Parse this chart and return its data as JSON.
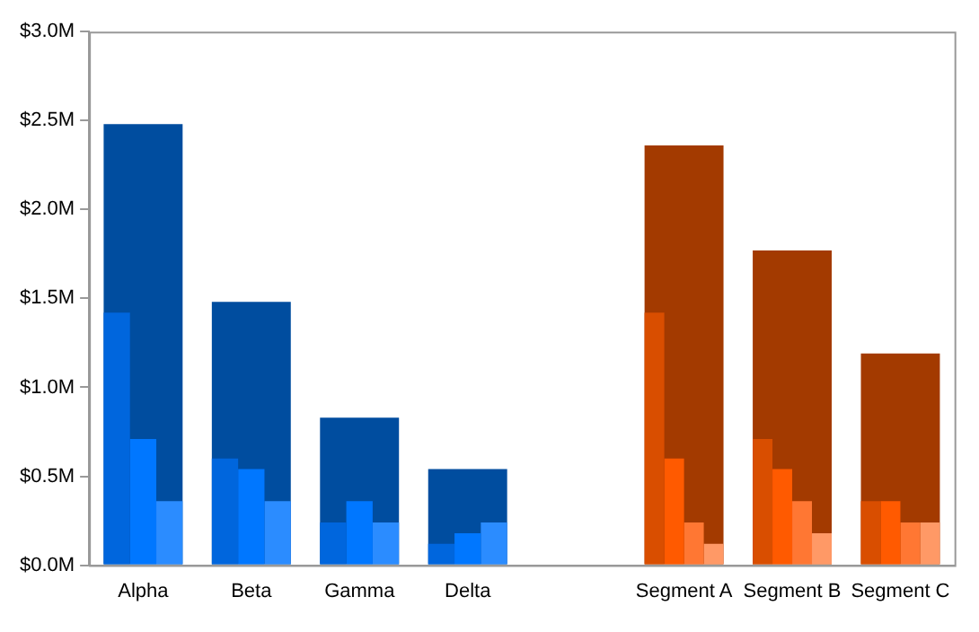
{
  "chart_data": {
    "type": "bar",
    "categories": [
      "Alpha",
      "Beta",
      "Gamma",
      "Delta",
      null,
      "Segment A",
      "Segment B",
      "Segment C"
    ],
    "series": [
      {
        "colors": [
          "#004d9f",
          "#004d9f",
          "#004d9f",
          "#004d9f",
          null,
          "#a33a00",
          "#a33a00",
          "#a33a00"
        ],
        "values": [
          2.48,
          1.48,
          0.83,
          0.54,
          null,
          2.36,
          1.77,
          1.19
        ]
      },
      {
        "colors": [
          "#0066dd",
          "#0066dd",
          "#0066dd",
          "#0066dd",
          null,
          "#d94e00",
          "#d94e00",
          "#d94e00"
        ],
        "values": [
          1.42,
          0.6,
          0.24,
          0.12,
          null,
          1.42,
          0.71,
          0.36
        ]
      },
      {
        "colors": [
          "#0077ff",
          "#0077ff",
          "#0077ff",
          "#0077ff",
          null,
          "#ff5a00",
          "#ff5a00",
          "#ff5a00"
        ],
        "values": [
          0.71,
          0.54,
          0.36,
          0.18,
          null,
          0.6,
          0.54,
          0.36
        ]
      },
      {
        "colors": [
          "#2b8cff",
          "#2b8cff",
          "#2b8cff",
          "#2b8cff",
          null,
          "#ff7733",
          "#ff7733",
          "#ff7733"
        ],
        "values": [
          0.36,
          0.36,
          0.24,
          0.24,
          null,
          0.24,
          0.36,
          0.24
        ]
      },
      {
        "colors": [
          null,
          null,
          null,
          null,
          null,
          "#ff9966",
          "#ff9966",
          "#ff9966"
        ],
        "values": [
          null,
          null,
          null,
          null,
          null,
          0.12,
          0.18,
          0.24
        ]
      }
    ],
    "ylim": [
      0,
      3
    ],
    "yticks": [
      {
        "value": 0,
        "label": "$0.0M"
      },
      {
        "value": 0.5,
        "label": "$0.5M"
      },
      {
        "value": 1,
        "label": "$1.0M"
      },
      {
        "value": 1.5,
        "label": "$1.5M"
      },
      {
        "value": 2,
        "label": "$2.0M"
      },
      {
        "value": 2.5,
        "label": "$2.5M"
      },
      {
        "value": 3,
        "label": "$3.0M"
      }
    ],
    "grid": false,
    "legend": false
  }
}
